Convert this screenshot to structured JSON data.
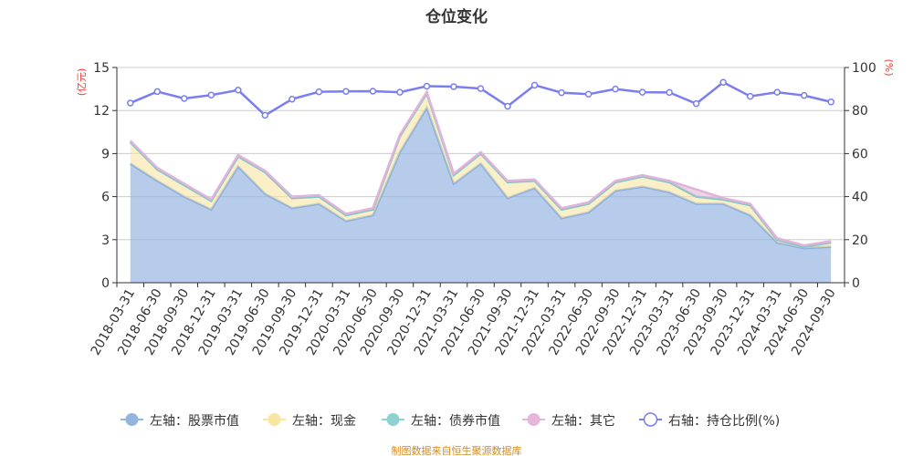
{
  "title": "仓位变化",
  "footer": "制图数据来自恒生聚源数据库",
  "chart_data": {
    "type": "area",
    "title": "仓位变化",
    "ylabel_left": "(亿元)",
    "ylabel_right": "(%)",
    "ylim_left": [
      0,
      15
    ],
    "yticks_left": [
      0,
      3,
      6,
      9,
      12,
      15
    ],
    "ylim_right": [
      0,
      100
    ],
    "yticks_right": [
      0,
      20,
      40,
      60,
      80,
      100
    ],
    "grid": true,
    "legend_position": "bottom",
    "categories": [
      "2018-03-31",
      "2018-06-30",
      "2018-09-30",
      "2018-12-31",
      "2019-03-31",
      "2019-06-30",
      "2019-09-30",
      "2019-12-31",
      "2020-03-31",
      "2020-06-30",
      "2020-09-30",
      "2020-12-31",
      "2021-03-31",
      "2021-06-30",
      "2021-09-30",
      "2021-12-31",
      "2022-03-31",
      "2022-06-30",
      "2022-09-30",
      "2022-12-31",
      "2023-03-31",
      "2023-06-30",
      "2023-09-30",
      "2023-12-31",
      "2024-03-31",
      "2024-06-30",
      "2024-09-30"
    ],
    "series": [
      {
        "name": "左轴：股票市值",
        "axis": "left",
        "stacked": true,
        "color": "#94b4e0",
        "values": [
          8.3,
          7.1,
          6.0,
          5.1,
          8.1,
          6.2,
          5.2,
          5.5,
          4.3,
          4.7,
          9.1,
          12.2,
          6.9,
          8.3,
          5.9,
          6.6,
          4.5,
          4.9,
          6.4,
          6.7,
          6.3,
          5.5,
          5.5,
          4.7,
          2.8,
          2.4,
          2.5
        ]
      },
      {
        "name": "左轴：现金",
        "axis": "left",
        "stacked": true,
        "color": "#f7e5a0",
        "values": [
          1.5,
          0.8,
          0.8,
          0.6,
          0.7,
          1.5,
          0.7,
          0.5,
          0.4,
          0.4,
          1.1,
          1.0,
          0.6,
          0.7,
          1.1,
          0.5,
          0.6,
          0.6,
          0.6,
          0.7,
          0.7,
          0.5,
          0.3,
          0.7,
          0.2,
          0.1,
          0.3
        ]
      },
      {
        "name": "左轴：债券市值",
        "axis": "left",
        "stacked": true,
        "color": "#8fd1d1",
        "values": [
          0,
          0,
          0,
          0,
          0,
          0,
          0,
          0,
          0,
          0,
          0,
          0,
          0,
          0,
          0,
          0,
          0,
          0,
          0,
          0,
          0,
          0,
          0,
          0,
          0,
          0,
          0
        ]
      },
      {
        "name": "左轴：其它",
        "axis": "left",
        "stacked": true,
        "color": "#e5b5da",
        "values": [
          0.1,
          0.1,
          0.1,
          0.1,
          0.1,
          0.1,
          0.1,
          0.1,
          0.1,
          0.1,
          0.1,
          0.1,
          0.1,
          0.1,
          0.1,
          0.1,
          0.1,
          0.1,
          0.1,
          0.1,
          0.1,
          0.5,
          0.1,
          0.1,
          0.1,
          0.1,
          0.1
        ]
      },
      {
        "name": "右轴：持仓比例(%)",
        "axis": "right",
        "type": "line",
        "color": "#7a7ef0",
        "values": [
          83.5,
          88.8,
          85.6,
          87.2,
          89.5,
          77.8,
          85.3,
          88.7,
          88.9,
          89.0,
          88.5,
          91.3,
          91.1,
          90.2,
          82.0,
          91.8,
          88.3,
          87.6,
          90.0,
          88.5,
          88.4,
          83.2,
          93.1,
          86.6,
          88.5,
          87.0,
          84.0
        ]
      }
    ]
  }
}
